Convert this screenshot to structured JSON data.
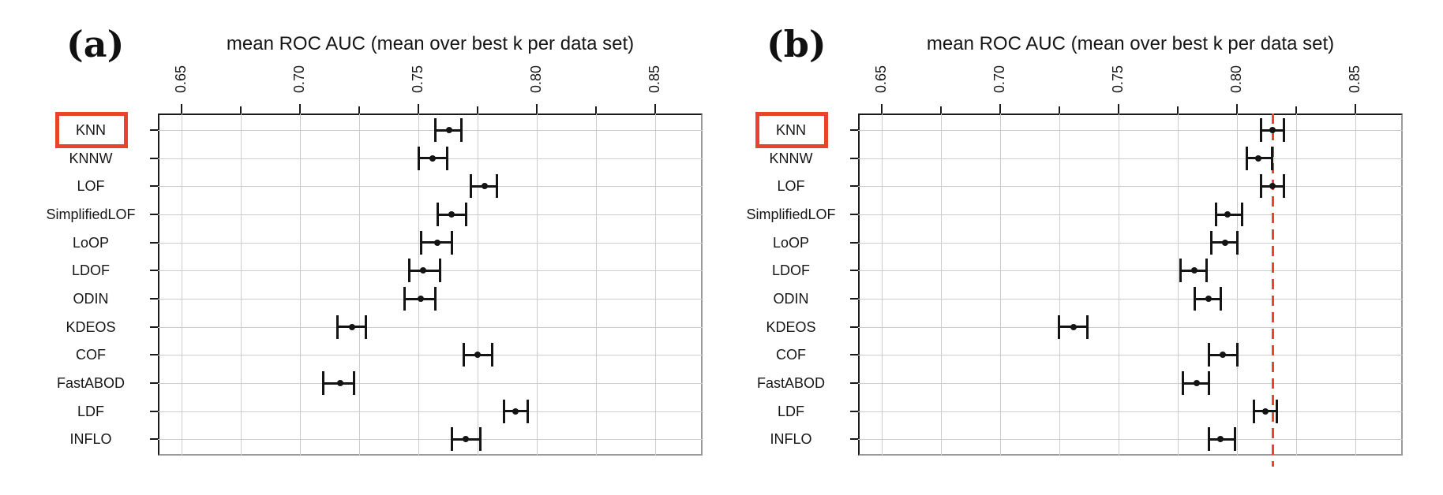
{
  "colors": {
    "accent_red": "#e8432b",
    "reference_line_red": "#ee4328",
    "grid_gray": "#cccccc",
    "ink": "#141414"
  },
  "chart_data": [
    {
      "type": "scatter",
      "panel_label": "(a)",
      "title": "mean ROC AUC (mean over best k per data set)",
      "orientation": "horizontal_dot_interval",
      "categories": [
        "KNN",
        "KNNW",
        "LOF",
        "SimplifiedLOF",
        "LoOP",
        "LDOF",
        "ODIN",
        "KDEOS",
        "COF",
        "FastABOD",
        "LDF",
        "INFLO"
      ],
      "values": [
        0.763,
        0.756,
        0.778,
        0.764,
        0.758,
        0.752,
        0.751,
        0.722,
        0.775,
        0.717,
        0.791,
        0.77
      ],
      "error_low": [
        0.757,
        0.75,
        0.772,
        0.758,
        0.751,
        0.746,
        0.744,
        0.716,
        0.769,
        0.71,
        0.786,
        0.764
      ],
      "error_high": [
        0.768,
        0.762,
        0.783,
        0.77,
        0.764,
        0.759,
        0.757,
        0.728,
        0.781,
        0.723,
        0.796,
        0.776
      ],
      "xtick_labels": [
        "0.65",
        "0.70",
        "0.75",
        "0.80",
        "0.85"
      ],
      "xtick_values": [
        0.65,
        0.7,
        0.75,
        0.8,
        0.85
      ],
      "minor_tick_step": 0.025,
      "xlim": [
        0.64,
        0.87
      ],
      "grid": true,
      "legend": null,
      "highlighted_category": "KNN",
      "reference_line_x": null
    },
    {
      "type": "scatter",
      "panel_label": "(b)",
      "title": "mean ROC AUC (mean over best k per data set)",
      "orientation": "horizontal_dot_interval",
      "categories": [
        "KNN",
        "KNNW",
        "LOF",
        "SimplifiedLOF",
        "LoOP",
        "LDOF",
        "ODIN",
        "KDEOS",
        "COF",
        "FastABOD",
        "LDF",
        "INFLO"
      ],
      "values": [
        0.815,
        0.809,
        0.815,
        0.796,
        0.795,
        0.782,
        0.788,
        0.731,
        0.794,
        0.783,
        0.812,
        0.793
      ],
      "error_low": [
        0.81,
        0.804,
        0.81,
        0.791,
        0.789,
        0.776,
        0.782,
        0.725,
        0.788,
        0.777,
        0.807,
        0.788
      ],
      "error_high": [
        0.82,
        0.815,
        0.82,
        0.802,
        0.8,
        0.787,
        0.793,
        0.737,
        0.8,
        0.788,
        0.817,
        0.799
      ],
      "xtick_labels": [
        "0.65",
        "0.70",
        "0.75",
        "0.80",
        "0.85"
      ],
      "xtick_values": [
        0.65,
        0.7,
        0.75,
        0.8,
        0.85
      ],
      "minor_tick_step": 0.025,
      "xlim": [
        0.64,
        0.87
      ],
      "grid": true,
      "legend": null,
      "highlighted_category": "KNN",
      "reference_line_x": 0.815
    }
  ]
}
